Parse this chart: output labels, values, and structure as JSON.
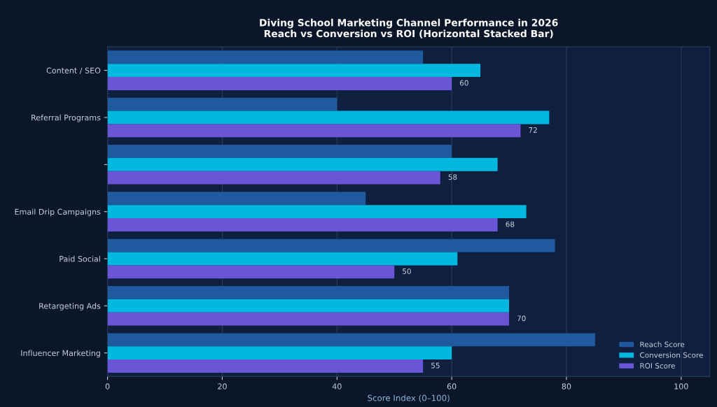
{
  "chart_data": {
    "type": "bar",
    "orientation": "horizontal",
    "title": "Diving School Marketing Channel Performance in 2026\nReach vs Conversion vs ROI (Horizontal Stacked Bar)",
    "xlabel": "Score Index (0–100)",
    "categories": [
      "Content / SEO",
      "Referral Programs",
      null,
      "Email Drip Campaigns",
      "Paid Social",
      "Retargeting Ads",
      "Influencer Marketing"
    ],
    "series": [
      {
        "name": "Reach Score",
        "color": "#1f5a9e",
        "values": [
          55,
          40,
          60,
          45,
          78,
          70,
          85
        ]
      },
      {
        "name": "Conversion Score",
        "color": "#00b8e0",
        "values": [
          65,
          77,
          68,
          73,
          61,
          70,
          60
        ]
      },
      {
        "name": "ROI Score",
        "color": "#6a55d6",
        "values": [
          60,
          72,
          58,
          68,
          50,
          70,
          55
        ],
        "value_labels": [
          "60",
          "72",
          "58",
          "68",
          "50",
          "70",
          "55"
        ]
      }
    ],
    "xlim": [
      0,
      105
    ],
    "xticks": [
      0,
      20,
      40,
      60,
      80,
      100
    ],
    "grid": "x",
    "legend": "bottom right"
  }
}
